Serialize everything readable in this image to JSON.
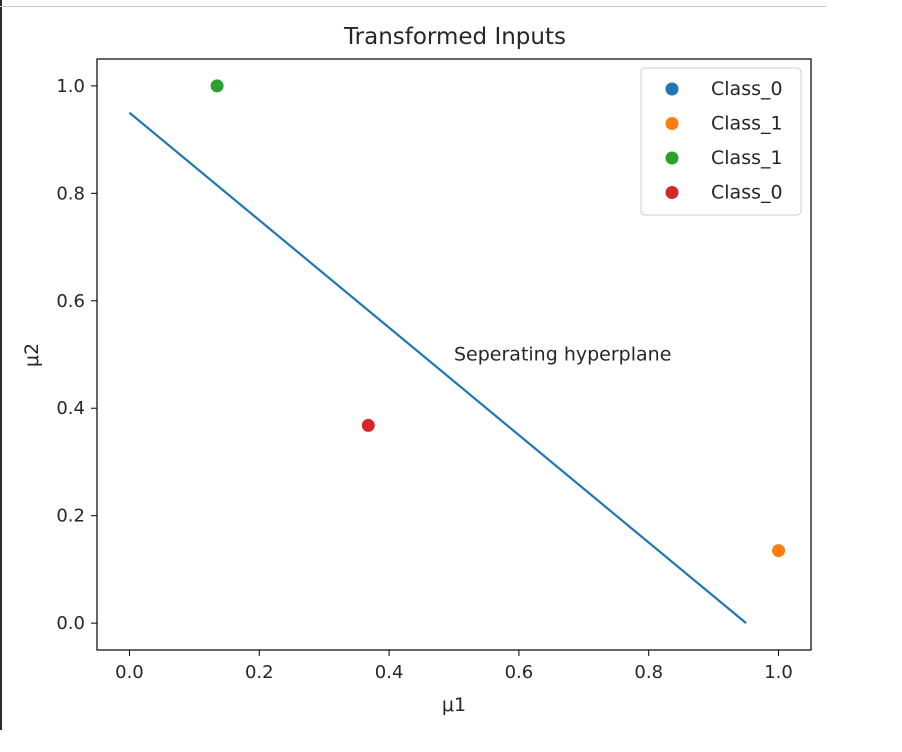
{
  "chart_data": {
    "type": "scatter",
    "title": "Transformed Inputs",
    "xlabel": "μ1",
    "ylabel": "μ2",
    "xlim": [
      -0.05,
      1.05
    ],
    "ylim": [
      -0.05,
      1.05
    ],
    "xticks": [
      "0.0",
      "0.2",
      "0.4",
      "0.6",
      "0.8",
      "1.0"
    ],
    "yticks": [
      "0.0",
      "0.2",
      "0.4",
      "0.6",
      "0.8",
      "1.0"
    ],
    "grid": false,
    "legend_position": "top-right",
    "series": [
      {
        "name": "Class_0",
        "color": "#1f77b4",
        "points": []
      },
      {
        "name": "Class_1",
        "color": "#ff7f0e",
        "points": [
          [
            1.0,
            0.135
          ]
        ]
      },
      {
        "name": "Class_1",
        "color": "#2ca02c",
        "points": [
          [
            0.135,
            1.0
          ]
        ]
      },
      {
        "name": "Class_0",
        "color": "#d62728",
        "points": [
          [
            0.368,
            0.368
          ]
        ]
      }
    ],
    "line": {
      "color": "#1f77b4",
      "x": [
        0.0,
        0.95
      ],
      "y": [
        0.95,
        0.0
      ]
    },
    "annotation": {
      "text": "Seperating hyperplane",
      "x": 0.5,
      "y": 0.5
    }
  }
}
